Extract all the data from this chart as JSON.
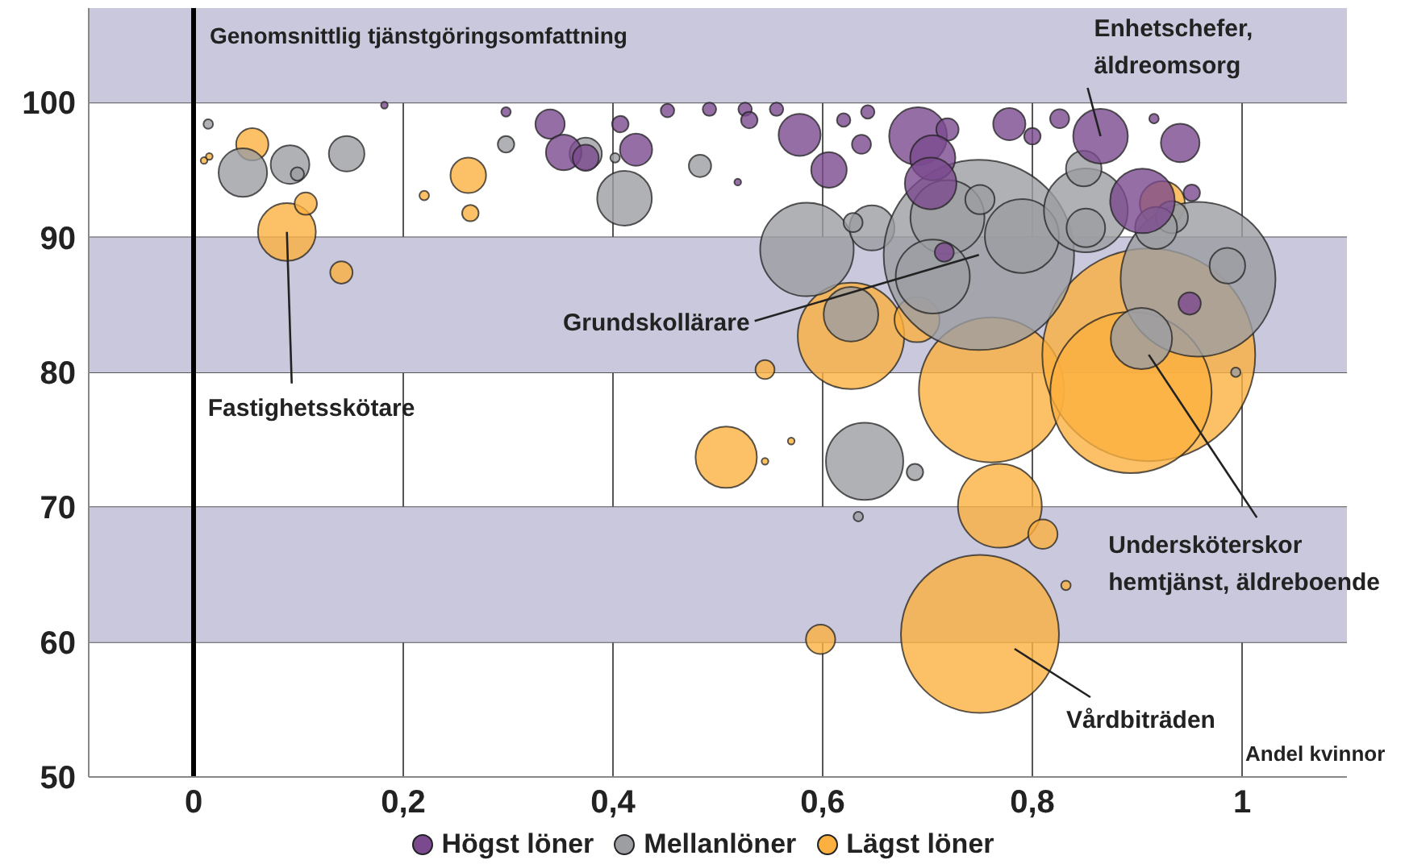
{
  "chart_data": {
    "type": "bubble",
    "ylabel": "Genomsnittlig tjänstgöringsomfattning",
    "xlabel": "Andel kvinnor",
    "xlim": [
      -0.1,
      1.1
    ],
    "ylim": [
      50,
      107
    ],
    "xticks": [
      0,
      {
        "value": 0.2,
        "label": "0,2"
      },
      {
        "value": 0.4,
        "label": "0,4"
      },
      {
        "value": 0.6,
        "label": "0,6"
      },
      {
        "value": 0.8,
        "label": "0,8"
      },
      1
    ],
    "yticks": [
      50,
      60,
      70,
      80,
      90,
      100
    ],
    "grid": true,
    "legend": "bottom",
    "bands": [
      {
        "axis": "y",
        "from": 100,
        "to": 107,
        "color": "#c9c8dc"
      },
      {
        "axis": "y",
        "from": 80,
        "to": 90,
        "color": "#c9c8dc"
      },
      {
        "axis": "y",
        "from": 60,
        "to": 70,
        "color": "#c9c8dc"
      }
    ],
    "ref_lines": [
      {
        "axis": "x",
        "value": 0,
        "color": "#000000"
      }
    ],
    "annotations": [
      {
        "text": "Enhetschefer,\näldreomsorg",
        "x": 0.865,
        "y": 97.5
      },
      {
        "text": "Grundskollärare",
        "x": 0.749,
        "y": 88.7
      },
      {
        "text": "Fastighetsskötare",
        "x": 0.089,
        "y": 90.4
      },
      {
        "text": "Undersköterskor\nhemtjänst, äldreboende",
        "x": 0.911,
        "y": 81.3
      },
      {
        "text": "Vårdbiträden",
        "x": 0.783,
        "y": 59.5
      }
    ],
    "series": [
      {
        "name": "Högst löner",
        "color": "#7b4a8e",
        "x": [
          0.182,
          0.298,
          0.34,
          0.353,
          0.374,
          0.407,
          0.422,
          0.452,
          0.492,
          0.526,
          0.53,
          0.519,
          0.556,
          0.578,
          0.62,
          0.643,
          0.637,
          0.606,
          0.691,
          0.719,
          0.705,
          0.703,
          0.716,
          0.778,
          0.8,
          0.826,
          0.865,
          0.916,
          0.941,
          0.905,
          0.952,
          0.95
        ],
        "values": [
          99.8,
          99.3,
          98.4,
          96.3,
          95.9,
          98.4,
          96.5,
          99.4,
          99.5,
          99.5,
          98.7,
          94.1,
          99.5,
          97.6,
          98.7,
          99.3,
          96.9,
          95.0,
          97.5,
          98.0,
          95.9,
          94.0,
          88.9,
          98.4,
          97.5,
          98.8,
          97.5,
          98.8,
          97.0,
          92.7,
          93.3,
          85.1
        ],
        "sizes": [
          0.001,
          0.002,
          0.019,
          0.028,
          0.015,
          0.006,
          0.023,
          0.004,
          0.004,
          0.004,
          0.006,
          0.001,
          0.004,
          0.039,
          0.004,
          0.004,
          0.008,
          0.028,
          0.074,
          0.011,
          0.045,
          0.059,
          0.008,
          0.023,
          0.006,
          0.008,
          0.066,
          0.002,
          0.033,
          0.092,
          0.006,
          0.011
        ]
      },
      {
        "name": "Mellanlöner",
        "color": "#9c9ea1",
        "x": [
          0.014,
          0.047,
          0.092,
          0.099,
          0.146,
          0.298,
          0.374,
          0.402,
          0.411,
          0.483,
          0.585,
          0.647,
          0.629,
          0.749,
          0.719,
          0.75,
          0.79,
          0.705,
          0.851,
          0.849,
          0.851,
          0.958,
          0.986,
          0.904,
          0.933,
          0.918,
          0.64,
          0.688,
          0.634,
          0.994,
          0.627
        ],
        "values": [
          98.4,
          94.8,
          95.4,
          94.7,
          96.2,
          96.9,
          96.2,
          95.9,
          92.9,
          95.3,
          89.1,
          90.7,
          91.1,
          88.7,
          91.5,
          92.8,
          90.1,
          87.1,
          92.0,
          95.1,
          90.7,
          86.9,
          87.9,
          82.5,
          91.5,
          90.7,
          73.4,
          72.6,
          69.3,
          80.0,
          84.3
        ],
        "sizes": [
          0.002,
          0.052,
          0.033,
          0.004,
          0.028,
          0.006,
          0.023,
          0.002,
          0.066,
          0.011,
          0.193,
          0.045,
          0.008,
          0.8,
          0.121,
          0.019,
          0.121,
          0.121,
          0.155,
          0.028,
          0.033,
          0.529,
          0.028,
          0.083,
          0.023,
          0.039,
          0.132,
          0.006,
          0.002,
          0.002,
          0.066
        ]
      },
      {
        "name": "Lägst löner",
        "color": "#fbb040",
        "x": [
          0.01,
          0.015,
          0.056,
          0.089,
          0.107,
          0.141,
          0.22,
          0.262,
          0.264,
          0.545,
          0.508,
          0.57,
          0.545,
          0.598,
          0.627,
          0.69,
          0.761,
          0.911,
          0.894,
          0.769,
          0.81,
          0.832,
          0.75,
          0.924
        ],
        "values": [
          95.7,
          96.0,
          96.9,
          90.4,
          92.5,
          87.4,
          93.1,
          94.6,
          91.8,
          80.2,
          73.7,
          74.9,
          73.4,
          60.2,
          82.7,
          83.9,
          78.7,
          81.3,
          78.5,
          70.1,
          68.0,
          64.2,
          60.6,
          92.5
        ],
        "sizes": [
          0.001,
          0.001,
          0.023,
          0.074,
          0.011,
          0.011,
          0.002,
          0.028,
          0.006,
          0.008,
          0.083,
          0.001,
          0.001,
          0.019,
          0.25,
          0.045,
          0.465,
          1,
          0.574,
          0.155,
          0.019,
          0.002,
          0.551,
          0.045
        ]
      }
    ]
  }
}
